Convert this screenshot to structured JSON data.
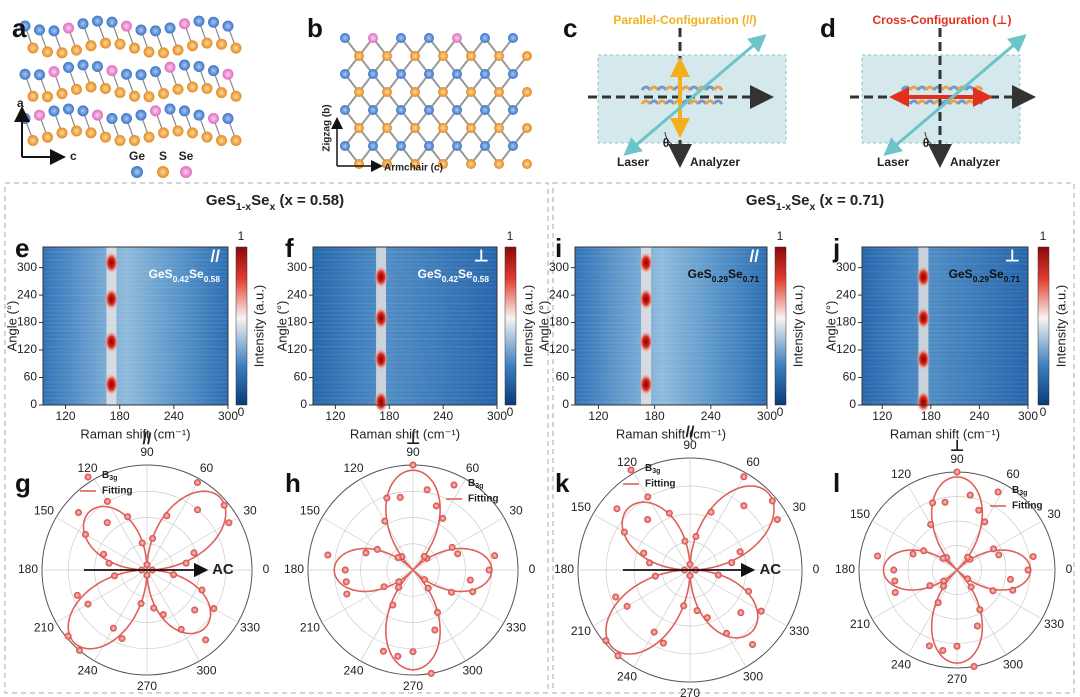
{
  "panels": {
    "a": {
      "letter": "a",
      "axis_vertical": "a",
      "axis_horizontal": "c",
      "legend": [
        "Ge",
        "S",
        "Se"
      ]
    },
    "b": {
      "letter": "b",
      "axis_vertical": "Zigzag (b)",
      "axis_horizontal": "Armchair (c)"
    },
    "c": {
      "letter": "c",
      "title": "Parallel-Configuration (//)",
      "laser": "Laser",
      "analyzer": "Analyzer",
      "angle": "θ"
    },
    "d": {
      "letter": "d",
      "title": "Cross-Configuration (⊥)",
      "laser": "Laser",
      "analyzer": "Analyzer",
      "angle": "θ"
    }
  },
  "groups": [
    {
      "title": [
        "GeS",
        "1-x",
        "Se",
        "x",
        " (x = 0.58)"
      ],
      "heatmaps": [
        {
          "letter": "e",
          "mode": "//",
          "sample": [
            "GeS",
            "0.42",
            "Se",
            "0.58"
          ],
          "y_label": "Angle (°)",
          "x_label": "Raman shift (cm⁻¹)",
          "cbar_label": "Intensity (a.u.)",
          "cbar_ticks": [
            "1",
            "0"
          ],
          "xlim": [
            95,
            300
          ],
          "xticks": [
            120,
            180,
            240,
            300
          ],
          "ylim": [
            0,
            345
          ],
          "yticks": [
            0,
            60,
            120,
            180,
            240,
            300
          ]
        },
        {
          "letter": "f",
          "mode": "⊥",
          "sample": [
            "GeS",
            "0.42",
            "Se",
            "0.58"
          ],
          "y_label": "Angle (°)",
          "x_label": "Raman shift (cm⁻¹)",
          "cbar_label": "Intensity (a.u.)",
          "cbar_ticks": [
            "1",
            "0"
          ],
          "xlim": [
            95,
            300
          ],
          "xticks": [
            120,
            180,
            240,
            300
          ],
          "ylim": [
            0,
            345
          ],
          "yticks": [
            0,
            60,
            120,
            180,
            240,
            300
          ]
        }
      ],
      "polars": [
        {
          "letter": "g",
          "mode": "//",
          "angle_ticks": [
            0,
            30,
            60,
            90,
            120,
            150,
            180,
            210,
            240,
            270,
            300,
            330
          ],
          "legend": [
            [
              "B",
              "3g"
            ],
            "Fitting"
          ],
          "arrow": "AC"
        },
        {
          "letter": "h",
          "mode": "⊥",
          "angle_ticks": [
            0,
            30,
            60,
            90,
            120,
            150,
            180,
            210,
            240,
            270,
            300,
            330
          ],
          "legend": [
            [
              "B",
              "3g"
            ],
            "Fitting"
          ]
        }
      ]
    },
    {
      "title": [
        "GeS",
        "1-x",
        "Se",
        "x",
        " (x = 0.71)"
      ],
      "heatmaps": [
        {
          "letter": "i",
          "mode": "//",
          "sample": [
            "GeS",
            "0.29",
            "Se",
            "0.71"
          ],
          "y_label": "Angle (°)",
          "x_label": "Raman shift (cm⁻¹)",
          "cbar_label": "Intensity (a.u.)",
          "cbar_ticks": [
            "1",
            "0"
          ],
          "xlim": [
            95,
            300
          ],
          "xticks": [
            120,
            180,
            240,
            300
          ],
          "ylim": [
            0,
            345
          ],
          "yticks": [
            0,
            60,
            120,
            180,
            240,
            300
          ]
        },
        {
          "letter": "j",
          "mode": "⊥",
          "sample": [
            "GeS",
            "0.29",
            "Se",
            "0.71"
          ],
          "y_label": "Angle (°)",
          "x_label": "Raman shift (cm⁻¹)",
          "cbar_label": "Intensity (a.u.)",
          "cbar_ticks": [
            "1",
            "0"
          ],
          "xlim": [
            95,
            300
          ],
          "xticks": [
            120,
            180,
            240,
            300
          ],
          "ylim": [
            0,
            345
          ],
          "yticks": [
            0,
            60,
            120,
            180,
            240,
            300
          ]
        }
      ],
      "polars": [
        {
          "letter": "k",
          "mode": "//",
          "angle_ticks": [
            0,
            30,
            60,
            90,
            120,
            150,
            180,
            210,
            240,
            270,
            300,
            330
          ],
          "legend": [
            [
              "B",
              "3g"
            ],
            "Fitting"
          ],
          "arrow": "AC"
        },
        {
          "letter": "l",
          "mode": "⊥",
          "angle_ticks": [
            0,
            30,
            60,
            90,
            120,
            150,
            180,
            210,
            240,
            270,
            300,
            330
          ],
          "legend": [
            [
              "B",
              "3g"
            ],
            "Fitting"
          ]
        }
      ]
    }
  ]
}
